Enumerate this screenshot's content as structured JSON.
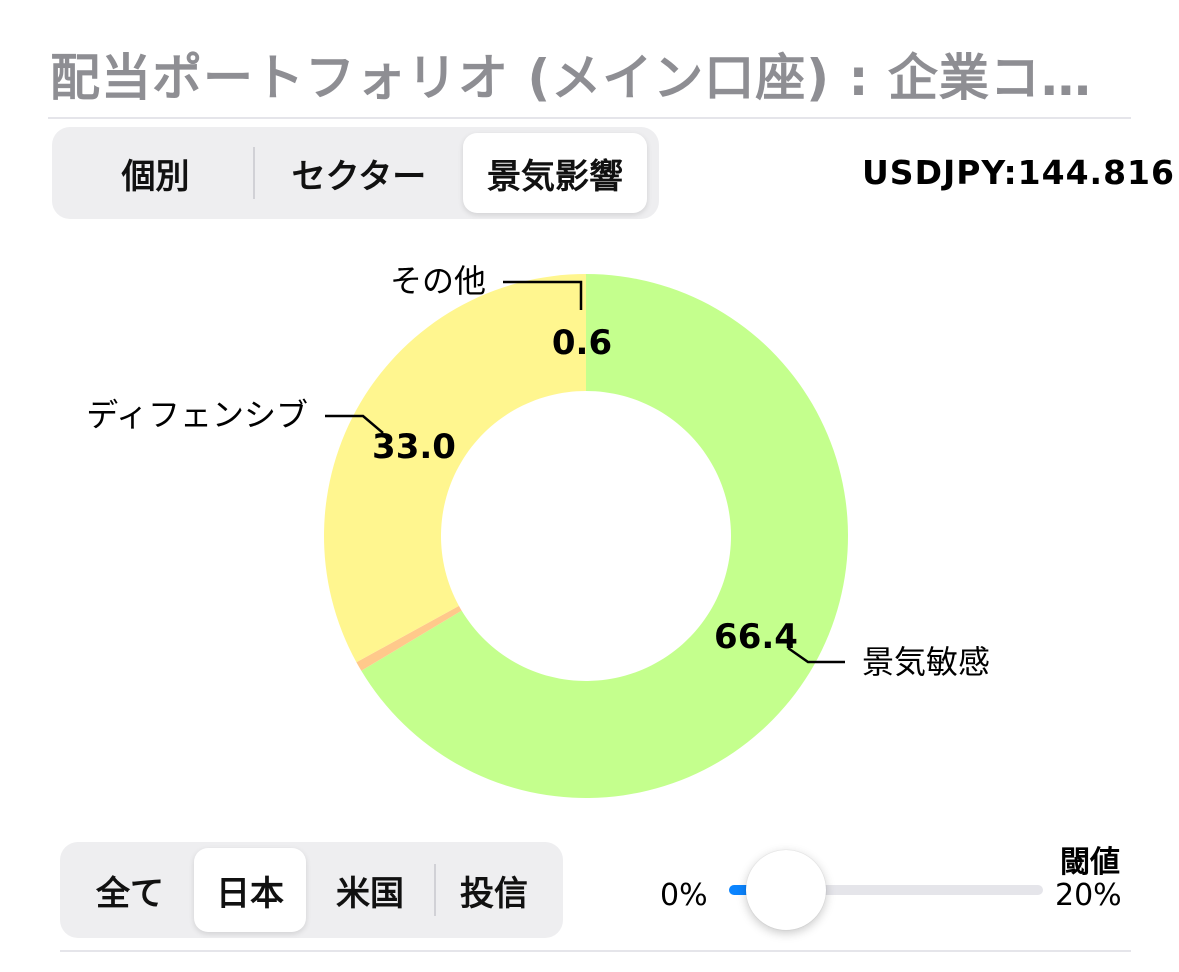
{
  "header": {
    "title": "配当ポートフォリオ (メイン口座) : 企業コ…"
  },
  "view_tabs": {
    "items": [
      {
        "label": "個別",
        "active": false
      },
      {
        "label": "セクター",
        "active": false
      },
      {
        "label": "景気影響",
        "active": true
      }
    ]
  },
  "fx_rate": "USDJPY:144.816",
  "chart_data": {
    "type": "pie",
    "variant": "donut",
    "slices": [
      {
        "name": "景気敏感",
        "value": 66.4,
        "value_label": "66.4",
        "color": "#c4ff8d"
      },
      {
        "name": "その他",
        "value": 0.6,
        "value_label": "0.6",
        "color": "#ffc98b"
      },
      {
        "name": "ディフェンシブ",
        "value": 33.0,
        "value_label": "33.0",
        "color": "#fff68f"
      }
    ],
    "start": "12 o'clock",
    "direction": "clockwise",
    "legend": "none",
    "labels": "outside with leader lines"
  },
  "region_tabs": {
    "items": [
      {
        "label": "全て",
        "active": false
      },
      {
        "label": "日本",
        "active": true
      },
      {
        "label": "米国",
        "active": false
      },
      {
        "label": "投信",
        "active": false
      }
    ]
  },
  "threshold": {
    "title": "閾値",
    "min_label": "0%",
    "max_label": "20%",
    "value_fraction": 0.0,
    "colors": {
      "fill": "#0a84ff",
      "track": "#e5e5ea"
    }
  }
}
